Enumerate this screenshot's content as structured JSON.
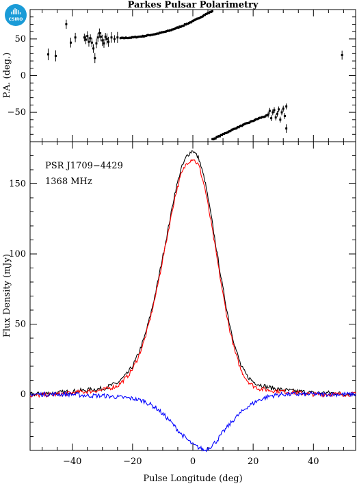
{
  "title": "Parkes Pulsar Polarimetry",
  "logo": {
    "text": "CSIRO",
    "color": "#1a9bd7"
  },
  "colors": {
    "total": "#000000",
    "linear": "#ff0000",
    "circular": "#0000ff"
  },
  "annotations": {
    "psr": "PSR J1709−4429",
    "freq": "1368 MHz"
  },
  "chart_data": [
    {
      "type": "scatter",
      "panel": "position-angle",
      "ylabel": "P.A. (deg.)",
      "xlim": [
        -54,
        54
      ],
      "ylim": [
        -90,
        90
      ],
      "yticks": [
        -50,
        0,
        50
      ],
      "ytick_labels": [
        "−50",
        "0",
        "50"
      ],
      "grid": false,
      "points": [
        [
          -48,
          29
        ],
        [
          -45.5,
          27
        ],
        [
          -42,
          70
        ],
        [
          -40.5,
          45
        ],
        [
          -39,
          52
        ],
        [
          -36,
          52
        ],
        [
          -35.5,
          49
        ],
        [
          -35,
          54
        ],
        [
          -34.5,
          46
        ],
        [
          -34,
          51
        ],
        [
          -33.5,
          45
        ],
        [
          -33,
          37
        ],
        [
          -32.5,
          24
        ],
        [
          -32,
          44
        ],
        [
          -31.5,
          52
        ],
        [
          -31,
          58
        ],
        [
          -30.5,
          53
        ],
        [
          -30,
          48
        ],
        [
          -29.5,
          44
        ],
        [
          -29,
          53
        ],
        [
          -28.5,
          50
        ],
        [
          -28,
          46
        ],
        [
          -27,
          52
        ],
        [
          -26,
          50
        ],
        [
          -25,
          52
        ],
        [
          49.5,
          28
        ],
        [
          31,
          -72
        ]
      ],
      "curves": [
        {
          "x": [
            -24,
            -20,
            -16,
            -12,
            -8,
            -4,
            0,
            4,
            6.5
          ],
          "y": [
            51,
            52,
            54,
            57,
            61,
            67,
            74,
            83,
            88
          ]
        },
        {
          "x": [
            6.5,
            10,
            14,
            18,
            22,
            25
          ],
          "y": [
            -87,
            -80,
            -72,
            -65,
            -58,
            -54
          ]
        }
      ],
      "noisy_points": [
        [
          25,
          -53
        ],
        [
          25.5,
          -48
        ],
        [
          26,
          -58
        ],
        [
          26.5,
          -50
        ],
        [
          27,
          -47
        ],
        [
          27.5,
          -57
        ],
        [
          28,
          -52
        ],
        [
          28.5,
          -46
        ],
        [
          29,
          -60
        ],
        [
          29.5,
          -50
        ],
        [
          30,
          -45
        ],
        [
          30.5,
          -55
        ],
        [
          31,
          -42
        ]
      ]
    },
    {
      "type": "line",
      "panel": "profile",
      "xlabel": "Pulse Longitude (deg)",
      "ylabel": "Flux Density (mJy)",
      "xlim": [
        -54,
        54
      ],
      "ylim": [
        -40,
        180
      ],
      "xticks": [
        -40,
        -20,
        0,
        20,
        40
      ],
      "xtick_labels": [
        "−40",
        "−20",
        "0",
        "20",
        "40"
      ],
      "yticks": [
        0,
        50,
        100,
        150
      ],
      "ytick_labels": [
        "0",
        "50",
        "100",
        "150"
      ],
      "grid": false,
      "series": [
        {
          "key": "total",
          "x": [
            -54,
            -45,
            -40,
            -35,
            -30,
            -25,
            -22,
            -20,
            -18,
            -16,
            -14,
            -12,
            -10,
            -8,
            -6,
            -4,
            -2,
            0,
            2,
            4,
            6,
            8,
            10,
            12,
            14,
            16,
            18,
            20,
            22,
            25,
            30,
            35,
            40,
            45,
            54
          ],
          "y": [
            0,
            1,
            2,
            3,
            4,
            8,
            14,
            20,
            29,
            41,
            57,
            76,
            98,
            120,
            143,
            160,
            170,
            174,
            168,
            152,
            128,
            101,
            75,
            52,
            34,
            20,
            13,
            9,
            7,
            5,
            3,
            2,
            1,
            1,
            0
          ]
        },
        {
          "key": "linear",
          "x": [
            -54,
            -45,
            -40,
            -35,
            -30,
            -25,
            -22,
            -20,
            -18,
            -16,
            -14,
            -12,
            -10,
            -8,
            -6,
            -4,
            -2,
            0,
            2,
            4,
            6,
            8,
            10,
            12,
            14,
            16,
            18,
            20,
            22,
            25,
            30,
            35,
            40,
            45,
            54
          ],
          "y": [
            -1,
            0,
            1,
            2,
            3,
            6,
            12,
            18,
            27,
            39,
            55,
            74,
            96,
            118,
            140,
            156,
            165,
            168,
            163,
            147,
            123,
            97,
            71,
            48,
            30,
            17,
            10,
            6,
            4,
            3,
            2,
            1,
            0,
            0,
            0
          ]
        },
        {
          "key": "circular",
          "x": [
            -54,
            -45,
            -40,
            -35,
            -30,
            -25,
            -20,
            -16,
            -12,
            -8,
            -4,
            0,
            2,
            4,
            6,
            8,
            10,
            14,
            18,
            22,
            26,
            30,
            35,
            40,
            45,
            54
          ],
          "y": [
            0,
            0,
            0,
            -1,
            -1,
            -2,
            -3,
            -5,
            -10,
            -18,
            -28,
            -36,
            -38,
            -40,
            -37,
            -33,
            -27,
            -17,
            -9,
            -4,
            -1,
            0,
            0,
            0,
            0,
            0
          ]
        }
      ]
    }
  ]
}
